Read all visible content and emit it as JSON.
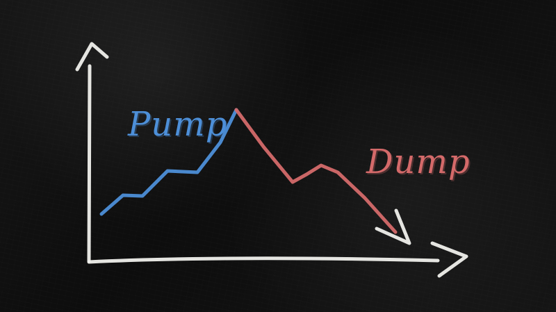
{
  "scene": {
    "labels": {
      "pump": "Pump",
      "dump": "Dump"
    },
    "colors": {
      "background": "#111111",
      "chalk_white": "#f2f2ee",
      "pump": "#4d8fd8",
      "dump": "#d46a6a"
    },
    "icons": {
      "y_axis": "up-arrow-icon",
      "x_axis": "right-arrow-icon",
      "trend": "down-right-arrow-icon"
    }
  }
}
